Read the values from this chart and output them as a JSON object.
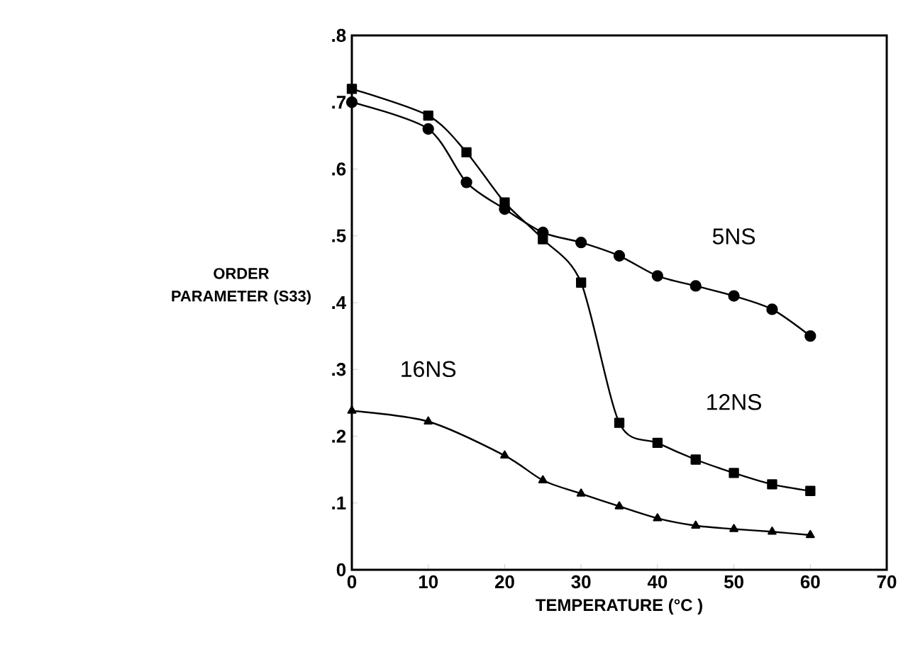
{
  "chart_data": {
    "type": "line",
    "xlabel": "TEMPERATURE (°C )",
    "ylabel": "ORDER PARAMETER (S33)",
    "series": [
      {
        "name": "5NS",
        "color": "#000000",
        "marker": "circle",
        "x": [
          0,
          10,
          15,
          20,
          25,
          30,
          35,
          40,
          45,
          50,
          55,
          60
        ],
        "values": [
          0.7,
          0.66,
          0.58,
          0.54,
          0.505,
          0.49,
          0.47,
          0.44,
          0.425,
          0.41,
          0.39,
          0.35
        ]
      },
      {
        "name": "12NS",
        "color": "#000000",
        "marker": "square",
        "x": [
          0,
          10,
          15,
          20,
          25,
          30,
          35,
          40,
          45,
          50,
          55,
          60
        ],
        "values": [
          0.72,
          0.68,
          0.625,
          0.55,
          0.495,
          0.43,
          0.22,
          0.19,
          0.165,
          0.145,
          0.128,
          0.118
        ]
      },
      {
        "name": "16NS",
        "color": "#000000",
        "marker": "triangle",
        "x": [
          0,
          10,
          20,
          25,
          30,
          35,
          40,
          45,
          50,
          55,
          60
        ],
        "values": [
          0.238,
          0.222,
          0.171,
          0.134,
          0.114,
          0.095,
          0.077,
          0.066,
          0.061,
          0.057,
          0.052
        ]
      }
    ],
    "xlim": [
      0,
      70
    ],
    "ylim": [
      0,
      0.8
    ],
    "xticks": [
      0,
      10,
      20,
      30,
      40,
      50,
      60,
      70
    ],
    "yticks": [
      {
        "value": 0,
        "label": "0"
      },
      {
        "value": 0.1,
        "label": ".1"
      },
      {
        "value": 0.2,
        "label": ".2"
      },
      {
        "value": 0.3,
        "label": ".3"
      },
      {
        "value": 0.4,
        "label": ".4"
      },
      {
        "value": 0.5,
        "label": ".5"
      },
      {
        "value": 0.6,
        "label": ".6"
      },
      {
        "value": 0.7,
        "label": ".7"
      },
      {
        "value": 0.8,
        "label": ".8"
      }
    ],
    "grid": false,
    "legend": false,
    "line_style": "solid"
  }
}
